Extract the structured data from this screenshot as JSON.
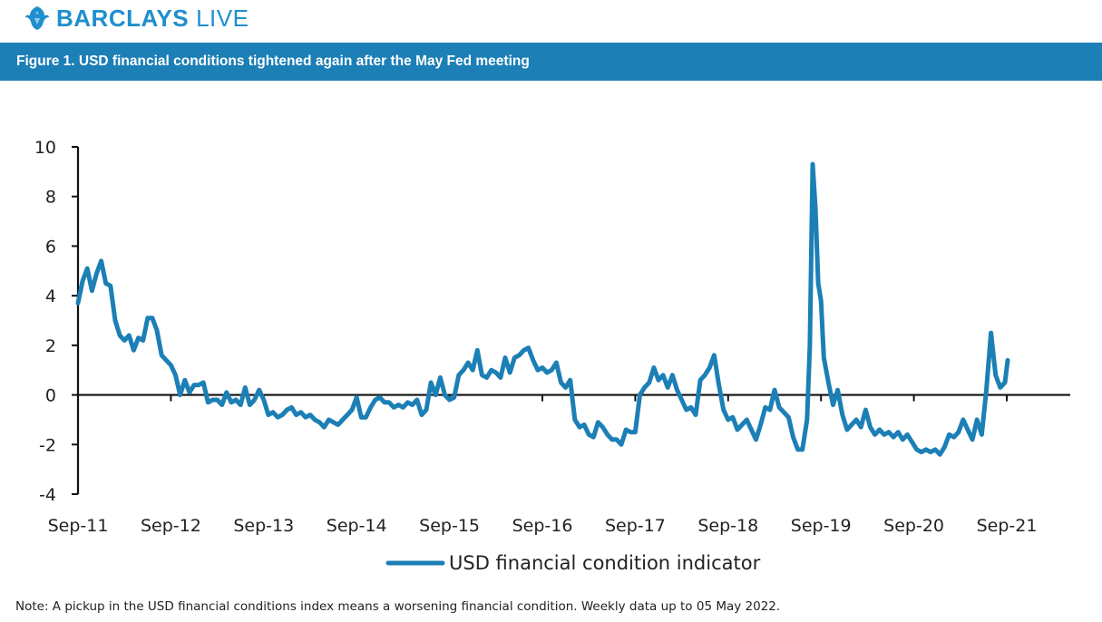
{
  "header": {
    "brand_primary": "BARCLAYS",
    "brand_secondary": "LIVE",
    "brand_color": "#1f8fce",
    "logo_icon": "eagle-icon"
  },
  "figure": {
    "title": "Figure 1. USD financial conditions tightened again after the May Fed meeting",
    "bar_color": "#1c7fb6"
  },
  "note": "Note: A pickup in the USD financial conditions index means a worsening financial condition. Weekly data up to 05 May 2022.",
  "chart_data": {
    "type": "line",
    "title": "",
    "xlabel": "",
    "ylabel": "",
    "ylim": [
      -4,
      10
    ],
    "yticks": [
      "10",
      "8",
      "6",
      "4",
      "2",
      "0",
      "-2",
      "-4"
    ],
    "xticks": [
      "Sep-11",
      "Sep-12",
      "Sep-13",
      "Sep-14",
      "Sep-15",
      "Sep-16",
      "Sep-17",
      "Sep-18",
      "Sep-19",
      "Sep-20",
      "Sep-21"
    ],
    "x_start": 2011.67,
    "grid": false,
    "legend_position": "bottom-center",
    "series": [
      {
        "name": "USD financial condition indicator",
        "color": "#1c7fb6",
        "points": [
          [
            2011.67,
            3.7
          ],
          [
            2011.72,
            4.6
          ],
          [
            2011.77,
            5.1
          ],
          [
            2011.82,
            4.2
          ],
          [
            2011.87,
            4.9
          ],
          [
            2011.92,
            5.4
          ],
          [
            2011.97,
            4.5
          ],
          [
            2012.02,
            4.4
          ],
          [
            2012.07,
            3.0
          ],
          [
            2012.12,
            2.4
          ],
          [
            2012.17,
            2.2
          ],
          [
            2012.22,
            2.4
          ],
          [
            2012.27,
            1.8
          ],
          [
            2012.32,
            2.3
          ],
          [
            2012.37,
            2.2
          ],
          [
            2012.42,
            3.1
          ],
          [
            2012.47,
            3.1
          ],
          [
            2012.52,
            2.6
          ],
          [
            2012.57,
            1.6
          ],
          [
            2012.62,
            1.4
          ],
          [
            2012.67,
            1.2
          ],
          [
            2012.72,
            0.8
          ],
          [
            2012.77,
            0.0
          ],
          [
            2012.82,
            0.6
          ],
          [
            2012.87,
            0.1
          ],
          [
            2012.92,
            0.4
          ],
          [
            2012.97,
            0.4
          ],
          [
            2013.02,
            0.5
          ],
          [
            2013.07,
            -0.3
          ],
          [
            2013.12,
            -0.2
          ],
          [
            2013.17,
            -0.2
          ],
          [
            2013.22,
            -0.4
          ],
          [
            2013.27,
            0.1
          ],
          [
            2013.32,
            -0.3
          ],
          [
            2013.37,
            -0.2
          ],
          [
            2013.42,
            -0.4
          ],
          [
            2013.47,
            0.3
          ],
          [
            2013.52,
            -0.4
          ],
          [
            2013.57,
            -0.2
          ],
          [
            2013.62,
            0.2
          ],
          [
            2013.67,
            -0.2
          ],
          [
            2013.72,
            -0.8
          ],
          [
            2013.77,
            -0.7
          ],
          [
            2013.82,
            -0.9
          ],
          [
            2013.87,
            -0.8
          ],
          [
            2013.92,
            -0.6
          ],
          [
            2013.97,
            -0.5
          ],
          [
            2014.02,
            -0.8
          ],
          [
            2014.07,
            -0.7
          ],
          [
            2014.12,
            -0.9
          ],
          [
            2014.17,
            -0.8
          ],
          [
            2014.22,
            -1.0
          ],
          [
            2014.27,
            -1.1
          ],
          [
            2014.32,
            -1.3
          ],
          [
            2014.37,
            -1.0
          ],
          [
            2014.42,
            -1.1
          ],
          [
            2014.47,
            -1.2
          ],
          [
            2014.52,
            -1.0
          ],
          [
            2014.57,
            -0.8
          ],
          [
            2014.62,
            -0.6
          ],
          [
            2014.67,
            -0.1
          ],
          [
            2014.72,
            -0.9
          ],
          [
            2014.77,
            -0.9
          ],
          [
            2014.82,
            -0.5
          ],
          [
            2014.87,
            -0.2
          ],
          [
            2014.92,
            -0.1
          ],
          [
            2014.97,
            -0.3
          ],
          [
            2015.02,
            -0.3
          ],
          [
            2015.07,
            -0.5
          ],
          [
            2015.12,
            -0.4
          ],
          [
            2015.17,
            -0.5
          ],
          [
            2015.22,
            -0.3
          ],
          [
            2015.27,
            -0.4
          ],
          [
            2015.32,
            -0.2
          ],
          [
            2015.37,
            -0.8
          ],
          [
            2015.42,
            -0.6
          ],
          [
            2015.47,
            0.5
          ],
          [
            2015.52,
            0.0
          ],
          [
            2015.57,
            0.7
          ],
          [
            2015.62,
            0.0
          ],
          [
            2015.67,
            -0.2
          ],
          [
            2015.72,
            -0.1
          ],
          [
            2015.77,
            0.8
          ],
          [
            2015.82,
            1.0
          ],
          [
            2015.87,
            1.3
          ],
          [
            2015.92,
            1.0
          ],
          [
            2015.97,
            1.8
          ],
          [
            2016.02,
            0.8
          ],
          [
            2016.07,
            0.7
          ],
          [
            2016.12,
            1.0
          ],
          [
            2016.17,
            0.9
          ],
          [
            2016.22,
            0.7
          ],
          [
            2016.27,
            1.5
          ],
          [
            2016.32,
            0.9
          ],
          [
            2016.37,
            1.5
          ],
          [
            2016.42,
            1.6
          ],
          [
            2016.47,
            1.8
          ],
          [
            2016.52,
            1.9
          ],
          [
            2016.57,
            1.4
          ],
          [
            2016.62,
            1.0
          ],
          [
            2016.67,
            1.1
          ],
          [
            2016.72,
            0.9
          ],
          [
            2016.77,
            1.0
          ],
          [
            2016.82,
            1.3
          ],
          [
            2016.87,
            0.5
          ],
          [
            2016.92,
            0.3
          ],
          [
            2016.97,
            0.6
          ],
          [
            2017.02,
            -1.0
          ],
          [
            2017.07,
            -1.3
          ],
          [
            2017.12,
            -1.2
          ],
          [
            2017.17,
            -1.6
          ],
          [
            2017.22,
            -1.7
          ],
          [
            2017.27,
            -1.1
          ],
          [
            2017.32,
            -1.3
          ],
          [
            2017.37,
            -1.6
          ],
          [
            2017.42,
            -1.8
          ],
          [
            2017.47,
            -1.8
          ],
          [
            2017.52,
            -2.0
          ],
          [
            2017.57,
            -1.4
          ],
          [
            2017.62,
            -1.5
          ],
          [
            2017.67,
            -1.5
          ],
          [
            2017.72,
            0.0
          ],
          [
            2017.77,
            0.3
          ],
          [
            2017.82,
            0.5
          ],
          [
            2017.87,
            1.1
          ],
          [
            2017.92,
            0.6
          ],
          [
            2017.97,
            0.8
          ],
          [
            2018.02,
            0.3
          ],
          [
            2018.07,
            0.8
          ],
          [
            2018.12,
            0.2
          ],
          [
            2018.17,
            -0.2
          ],
          [
            2018.22,
            -0.6
          ],
          [
            2018.27,
            -0.5
          ],
          [
            2018.32,
            -0.8
          ],
          [
            2018.37,
            0.6
          ],
          [
            2018.42,
            0.8
          ],
          [
            2018.47,
            1.1
          ],
          [
            2018.52,
            1.6
          ],
          [
            2018.57,
            0.4
          ],
          [
            2018.62,
            -0.6
          ],
          [
            2018.67,
            -1.0
          ],
          [
            2018.72,
            -0.9
          ],
          [
            2018.77,
            -1.4
          ],
          [
            2018.82,
            -1.2
          ],
          [
            2018.87,
            -1.0
          ],
          [
            2018.92,
            -1.4
          ],
          [
            2018.97,
            -1.8
          ],
          [
            2019.02,
            -1.2
          ],
          [
            2019.07,
            -0.5
          ],
          [
            2019.12,
            -0.6
          ],
          [
            2019.17,
            0.2
          ],
          [
            2019.22,
            -0.5
          ],
          [
            2019.27,
            -0.7
          ],
          [
            2019.32,
            -0.9
          ],
          [
            2019.37,
            -1.7
          ],
          [
            2019.42,
            -2.2
          ],
          [
            2019.47,
            -2.2
          ],
          [
            2019.52,
            -1.0
          ],
          [
            2019.55,
            2.0
          ],
          [
            2019.58,
            9.3
          ],
          [
            2019.61,
            7.5
          ],
          [
            2019.64,
            4.5
          ],
          [
            2019.67,
            3.8
          ],
          [
            2019.7,
            1.5
          ],
          [
            2019.75,
            0.5
          ],
          [
            2019.8,
            -0.4
          ],
          [
            2019.85,
            0.2
          ],
          [
            2019.9,
            -0.8
          ],
          [
            2019.95,
            -1.4
          ],
          [
            2020.0,
            -1.2
          ],
          [
            2020.05,
            -1.0
          ],
          [
            2020.1,
            -1.3
          ],
          [
            2020.15,
            -0.6
          ],
          [
            2020.2,
            -1.3
          ],
          [
            2020.25,
            -1.6
          ],
          [
            2020.3,
            -1.4
          ],
          [
            2020.35,
            -1.6
          ],
          [
            2020.4,
            -1.5
          ],
          [
            2020.45,
            -1.7
          ],
          [
            2020.5,
            -1.5
          ],
          [
            2020.55,
            -1.8
          ],
          [
            2020.6,
            -1.6
          ],
          [
            2020.65,
            -1.9
          ],
          [
            2020.7,
            -2.2
          ],
          [
            2020.75,
            -2.3
          ],
          [
            2020.8,
            -2.2
          ],
          [
            2020.85,
            -2.3
          ],
          [
            2020.9,
            -2.2
          ],
          [
            2020.95,
            -2.4
          ],
          [
            2021.0,
            -2.1
          ],
          [
            2021.05,
            -1.6
          ],
          [
            2021.1,
            -1.7
          ],
          [
            2021.15,
            -1.5
          ],
          [
            2021.2,
            -1.0
          ],
          [
            2021.25,
            -1.4
          ],
          [
            2021.3,
            -1.8
          ],
          [
            2021.35,
            -1.0
          ],
          [
            2021.4,
            -1.6
          ],
          [
            2021.45,
            0.2
          ],
          [
            2021.5,
            2.5
          ],
          [
            2021.55,
            0.8
          ],
          [
            2021.6,
            0.3
          ],
          [
            2021.65,
            0.5
          ],
          [
            2021.68,
            1.4
          ]
        ]
      }
    ]
  }
}
